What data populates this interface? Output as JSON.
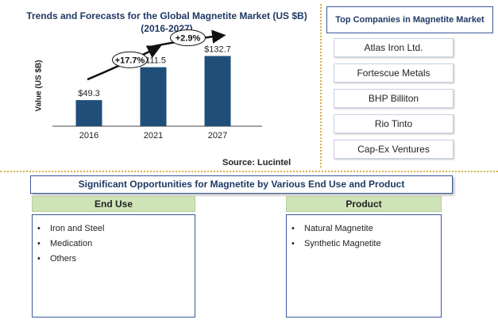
{
  "chart_data": {
    "type": "bar",
    "title_line1": "Trends and Forecasts for the Global Magnetite Market (US $B)",
    "title_line2": "(2016-2027)",
    "ylabel": "Value (US $B)",
    "categories": [
      "2016",
      "2021",
      "2027"
    ],
    "values": [
      49.3,
      111.5,
      132.7
    ],
    "value_labels": [
      "$49.3",
      "$111.5",
      "$132.7"
    ],
    "ylim": [
      0,
      150
    ],
    "bar_color": "#1f4e79",
    "growth_labels": [
      "+17.7%",
      "+2.9%"
    ],
    "source": "Source: Lucintel"
  },
  "companies": {
    "title": "Top Companies in Magnetite Market",
    "items": [
      "Atlas Iron Ltd.",
      "Fortescue Metals",
      "BHP Billiton",
      "Rio Tinto",
      "Cap-Ex Ventures"
    ]
  },
  "opportunities": {
    "title": "Significant Opportunities for Magnetite by Various End Use and Product",
    "end_use": {
      "heading": "End Use",
      "items": [
        "Iron and Steel",
        "Medication",
        "Others"
      ]
    },
    "product": {
      "heading": "Product",
      "items": [
        "Natural Magnetite",
        "Synthetic Magnetite"
      ]
    }
  }
}
